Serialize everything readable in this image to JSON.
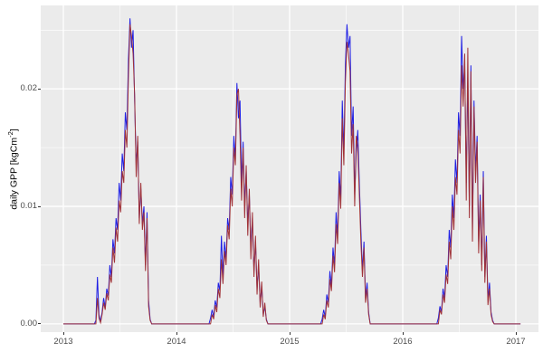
{
  "figure": {
    "panel_bg": "#EBEBEB",
    "grid_color": "#FFFFFF",
    "tick_color": "#333333",
    "tick_label_color": "#4D4D4D"
  },
  "axes": {
    "y_label_prefix": "daily GPP [kgCm",
    "y_label_sup": "-2",
    "y_label_suffix": "]",
    "x_tick_labels": [
      "2013",
      "2014",
      "2015",
      "2016",
      "2017"
    ],
    "y_tick_labels": [
      "0.00",
      "0.01",
      "0.02"
    ]
  },
  "chart_data": {
    "type": "line",
    "title": "",
    "xlabel": "",
    "ylabel": "daily GPP [kgCm^-2]",
    "legend": "none",
    "grid": "on",
    "x_domain": [
      2012.8,
      2017.2
    ],
    "y_domain": [
      -0.0007,
      0.0271
    ],
    "x_major_ticks": [
      2013,
      2014,
      2015,
      2016,
      2017
    ],
    "x_minor_ticks": [
      2013.5,
      2014.5,
      2015.5,
      2016.5
    ],
    "y_major_ticks": [
      0,
      0.01,
      0.02
    ],
    "y_minor_ticks": [
      0.005,
      0.015,
      0.025
    ],
    "x_start_year": 2013,
    "samples_per_year": 73,
    "value_scale": 0.001,
    "series": [
      {
        "name": "blue_series",
        "color": "#1E1EE4",
        "values_by_year": [
          [
            0,
            0,
            0,
            0,
            0,
            0,
            0,
            0,
            0,
            0,
            0,
            0,
            0,
            0,
            0,
            0,
            0,
            0,
            0,
            0,
            0,
            0.3,
            4,
            0.8,
            0.2,
            1,
            2.2,
            1.4,
            3,
            2.4,
            5,
            4,
            7.2,
            6,
            9,
            8,
            12,
            10.5,
            14.5,
            13,
            18,
            16.5,
            22.5,
            26,
            23.5,
            25,
            19,
            13.5,
            15.5,
            9,
            11.5,
            8.5,
            10,
            5,
            9.5,
            2,
            0.4,
            0,
            0,
            0,
            0,
            0,
            0,
            0,
            0,
            0,
            0,
            0,
            0,
            0,
            0,
            0,
            0
          ],
          [
            0,
            0,
            0,
            0,
            0,
            0,
            0,
            0,
            0,
            0,
            0,
            0,
            0,
            0,
            0,
            0,
            0,
            0,
            0,
            0,
            0,
            0,
            0.5,
            1.2,
            0.6,
            2,
            1.4,
            3.5,
            2.8,
            7.5,
            4,
            7,
            5.5,
            9,
            8,
            12.5,
            11,
            16,
            14,
            20.5,
            17.5,
            19,
            12,
            15.5,
            10,
            13,
            8.5,
            11,
            6.5,
            9,
            4.5,
            7,
            3,
            5,
            1.8,
            3.2,
            0.8,
            1.5,
            0.4,
            0,
            0,
            0,
            0,
            0,
            0,
            0,
            0,
            0,
            0,
            0,
            0,
            0,
            0
          ],
          [
            0,
            0,
            0,
            0,
            0,
            0,
            0,
            0,
            0,
            0,
            0,
            0,
            0,
            0,
            0,
            0,
            0,
            0,
            0,
            0,
            0,
            0.4,
            1.2,
            0.6,
            2.5,
            1.8,
            4.5,
            3.2,
            6.5,
            5,
            9.5,
            7.5,
            13,
            10.5,
            19,
            14.5,
            22,
            25.5,
            23.5,
            24.5,
            16,
            18.5,
            11,
            14.5,
            16.5,
            12,
            8,
            4.5,
            7,
            2.2,
            3.5,
            1,
            0,
            0,
            0,
            0,
            0,
            0,
            0,
            0,
            0,
            0,
            0,
            0,
            0,
            0,
            0,
            0,
            0,
            0,
            0,
            0,
            0
          ],
          [
            0,
            0,
            0,
            0,
            0,
            0,
            0,
            0,
            0,
            0,
            0,
            0,
            0,
            0,
            0,
            0,
            0,
            0,
            0,
            0,
            0,
            0,
            0,
            0.5,
            1.5,
            1,
            3,
            2.2,
            5,
            4,
            8,
            6.5,
            11,
            9,
            14,
            12,
            18,
            16,
            24.5,
            20,
            22,
            12,
            21,
            10,
            22,
            8,
            19,
            13,
            16,
            7,
            11,
            5,
            13,
            4,
            7.5,
            2,
            3.5,
            1,
            0.3,
            0,
            0,
            0,
            0,
            0,
            0,
            0,
            0,
            0,
            0,
            0,
            0,
            0,
            0
          ],
          [
            0,
            0,
            0,
            0
          ]
        ]
      },
      {
        "name": "red_series",
        "color": "#A03238",
        "values_by_year": [
          [
            0,
            0,
            0,
            0,
            0,
            0,
            0,
            0,
            0,
            0,
            0,
            0,
            0,
            0,
            0,
            0,
            0,
            0,
            0,
            0,
            0,
            0,
            2.2,
            0.5,
            0.1,
            0.8,
            1.8,
            1.2,
            2.6,
            2,
            4.2,
            3.5,
            6.5,
            5.2,
            8.2,
            7,
            10.5,
            9.5,
            13,
            12,
            16.5,
            15,
            21,
            25.5,
            24.5,
            23,
            19.5,
            12.5,
            16,
            8.5,
            12,
            8,
            9.5,
            4.5,
            9,
            1.5,
            0.3,
            0,
            0,
            0,
            0,
            0,
            0,
            0,
            0,
            0,
            0,
            0,
            0,
            0,
            0,
            0,
            0
          ],
          [
            0,
            0,
            0,
            0,
            0,
            0,
            0,
            0,
            0,
            0,
            0,
            0,
            0,
            0,
            0,
            0,
            0,
            0,
            0,
            0,
            0,
            0,
            0,
            0.8,
            0.4,
            1.6,
            1,
            3,
            2.2,
            5.5,
            3.4,
            6.2,
            5,
            8.4,
            7.2,
            11.5,
            10,
            15,
            13.5,
            19.5,
            20,
            16,
            10.5,
            15,
            9,
            13.5,
            7.5,
            11.5,
            5.5,
            9.5,
            4,
            7.5,
            2.5,
            5.5,
            1.4,
            3.6,
            0.6,
            1.8,
            0.3,
            0,
            0,
            0,
            0,
            0,
            0,
            0,
            0,
            0,
            0,
            0,
            0,
            0,
            0
          ],
          [
            0,
            0,
            0,
            0,
            0,
            0,
            0,
            0,
            0,
            0,
            0,
            0,
            0,
            0,
            0,
            0,
            0,
            0,
            0,
            0,
            0,
            0,
            0.8,
            0.4,
            2,
            1.4,
            3.8,
            2.8,
            5.8,
            4.4,
            8.5,
            6.8,
            12,
            9.8,
            17.5,
            13.5,
            20.5,
            24,
            23,
            21.5,
            14.5,
            17,
            10,
            16,
            15,
            11,
            7,
            4,
            6.5,
            1.8,
            3,
            0.8,
            0,
            0,
            0,
            0,
            0,
            0,
            0,
            0,
            0,
            0,
            0,
            0,
            0,
            0,
            0,
            0,
            0,
            0,
            0,
            0,
            0
          ],
          [
            0,
            0,
            0,
            0,
            0,
            0,
            0,
            0,
            0,
            0,
            0,
            0,
            0,
            0,
            0,
            0,
            0,
            0,
            0,
            0,
            0,
            0,
            0,
            0,
            1.2,
            0.8,
            2.5,
            1.8,
            4.2,
            3.4,
            7,
            5.5,
            10,
            8,
            12.5,
            11,
            16.5,
            14.5,
            22,
            18.5,
            23,
            10.5,
            23.5,
            9,
            21.5,
            7,
            18.5,
            12,
            15.5,
            6,
            10.5,
            4.5,
            12.5,
            3.5,
            7,
            1.6,
            3,
            0.8,
            0.2,
            0,
            0,
            0,
            0,
            0,
            0,
            0,
            0,
            0,
            0,
            0,
            0,
            0,
            0
          ],
          [
            0,
            0,
            0,
            0
          ]
        ]
      }
    ]
  }
}
